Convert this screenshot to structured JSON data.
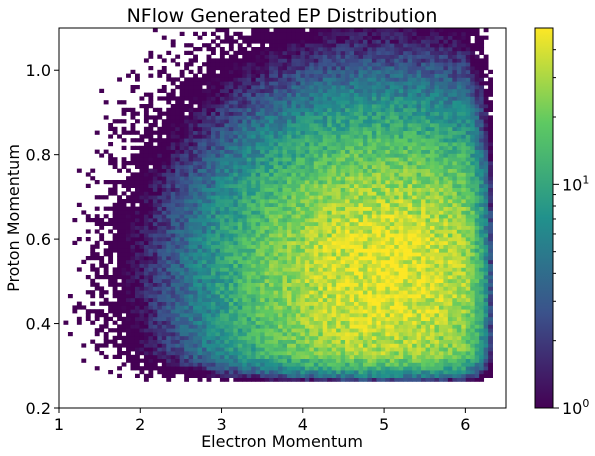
{
  "chart_data": {
    "type": "heatmap",
    "title": "NFlow Generated EP Distribution",
    "xlabel": "Electron Momentum",
    "ylabel": "Proton Momentum",
    "xlim": [
      1.0,
      6.5
    ],
    "ylim": [
      0.2,
      1.1
    ],
    "x_ticks": [
      "1",
      "2",
      "3",
      "4",
      "5",
      "6"
    ],
    "y_ticks": [
      "0.2",
      "0.4",
      "0.6",
      "0.8",
      "1.0"
    ],
    "grid": false,
    "bins": {
      "nx": 100,
      "ny": 100
    },
    "density_model": {
      "description": "2D histogram of counts, approximated by a smooth peak",
      "peak": {
        "x": 5.0,
        "y": 0.52,
        "count": 45
      },
      "occupied_region": {
        "x": [
          1.0,
          6.35
        ],
        "y": [
          0.26,
          1.1
        ]
      }
    },
    "colorbar": {
      "scale": "log",
      "range": [
        1,
        50
      ],
      "tick_labels": [
        {
          "base": "10",
          "exp": "0"
        },
        {
          "base": "10",
          "exp": "1"
        }
      ],
      "colormap": "viridis",
      "colors": [
        "#440154",
        "#3b528b",
        "#21918c",
        "#5ec962",
        "#fde725"
      ]
    }
  }
}
